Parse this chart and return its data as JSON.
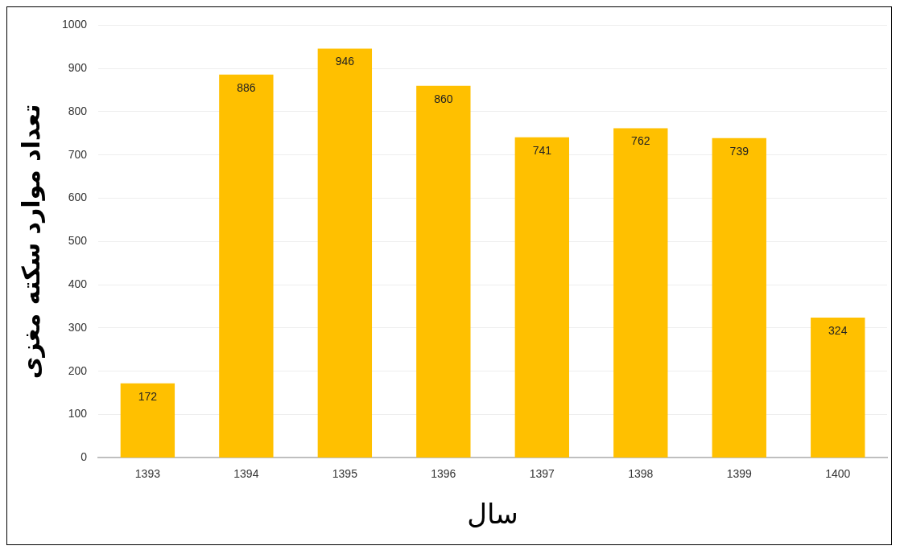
{
  "chart_data": {
    "type": "bar",
    "xlabel": "سال",
    "ylabel": "تعداد موارد سکته مغزی",
    "categories": [
      "1393",
      "1394",
      "1395",
      "1396",
      "1397",
      "1398",
      "1399",
      "1400"
    ],
    "values": [
      172,
      886,
      946,
      860,
      741,
      762,
      739,
      324
    ],
    "color": "#ffc000",
    "ylim": [
      0,
      1000
    ],
    "yticks": [
      0,
      100,
      200,
      300,
      400,
      500,
      600,
      700,
      800,
      900,
      1000
    ],
    "grid": "y",
    "data_labels": true,
    "legend": false
  }
}
